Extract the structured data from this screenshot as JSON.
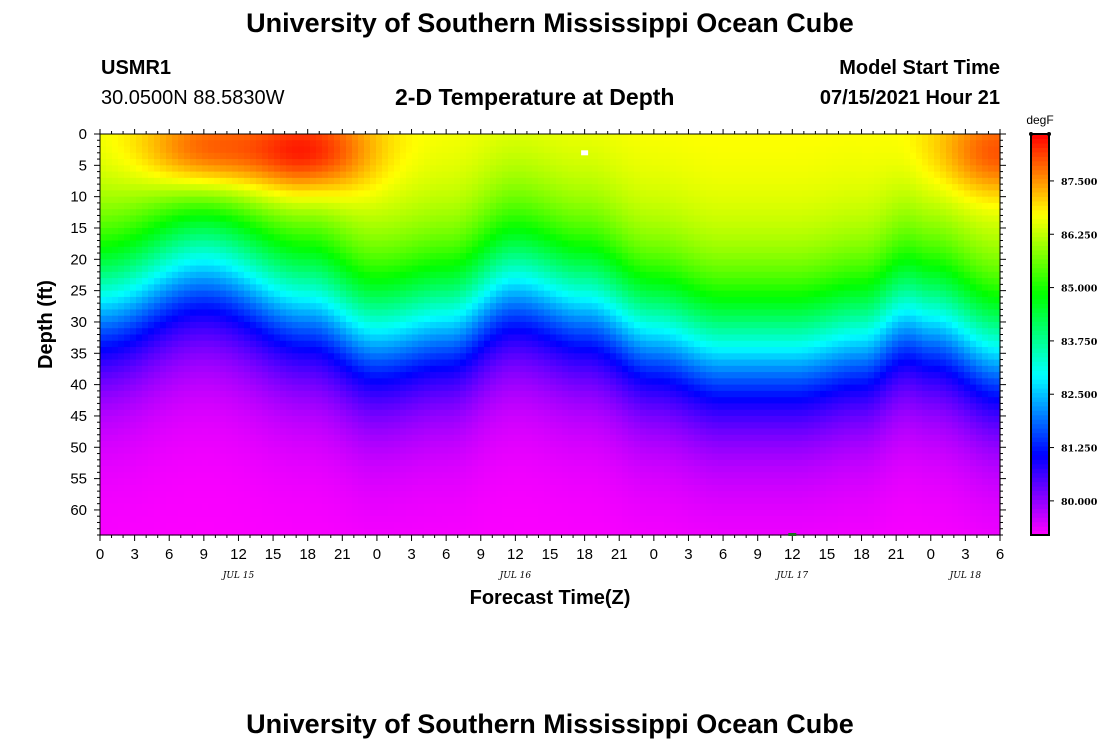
{
  "page": {
    "title_top": "University of Southern Mississippi Ocean Cube",
    "title_bottom": "University of Southern Mississippi Ocean Cube",
    "station": "USMR1",
    "coordinates": "30.0500N  88.5830W",
    "plot_title": "2-D Temperature at Depth",
    "model_start_label": "Model Start Time",
    "model_start_value": "07/15/2021 Hour 21"
  },
  "colors": {
    "background": "#ffffff",
    "axis": "#000000",
    "marker": "#ffffff"
  },
  "chart_data": {
    "type": "heatmap",
    "title": "2-D Temperature at Depth",
    "xlabel": "Forecast Time(Z)",
    "ylabel": "Depth (ft)",
    "x_hours_range": [
      0,
      78
    ],
    "y_range": [
      0,
      64
    ],
    "y_inverted": true,
    "x_tick_labels": [
      "0",
      "3",
      "6",
      "9",
      "12",
      "15",
      "18",
      "21",
      "0",
      "3",
      "6",
      "9",
      "12",
      "15",
      "18",
      "21",
      "0",
      "3",
      "6",
      "9",
      "12",
      "15",
      "18",
      "21",
      "0",
      "3",
      "6"
    ],
    "y_ticks": [
      0,
      5,
      10,
      15,
      20,
      25,
      30,
      35,
      40,
      45,
      50,
      55,
      60
    ],
    "date_labels": [
      {
        "label": "JUL 15",
        "hour": 12
      },
      {
        "label": "JUL 16",
        "hour": 36
      },
      {
        "label": "JUL 17",
        "hour": 60
      },
      {
        "label": "JUL 18",
        "hour": 75
      }
    ],
    "colorbar": {
      "unit": "degF",
      "min": 79.2,
      "max": 88.6,
      "tick_values": [
        80.0,
        81.25,
        82.5,
        83.75,
        85.0,
        86.25,
        87.5
      ],
      "tick_labels": [
        "80.000",
        "81.250",
        "82.500",
        "83.750",
        "85.000",
        "86.250",
        "87.500"
      ]
    },
    "thermocline_depth_by_hour": [
      {
        "hour": 0,
        "depth_ft": 26
      },
      {
        "hour": 9,
        "depth_ft": 20
      },
      {
        "hour": 18,
        "depth_ft": 26
      },
      {
        "hour": 24,
        "depth_ft": 31
      },
      {
        "hour": 30,
        "depth_ft": 29
      },
      {
        "hour": 36,
        "depth_ft": 23
      },
      {
        "hour": 42,
        "depth_ft": 26
      },
      {
        "hour": 48,
        "depth_ft": 31
      },
      {
        "hour": 54,
        "depth_ft": 34
      },
      {
        "hour": 60,
        "depth_ft": 34
      },
      {
        "hour": 66,
        "depth_ft": 32
      },
      {
        "hour": 70,
        "depth_ft": 28
      },
      {
        "hour": 72,
        "depth_ft": 29
      },
      {
        "hour": 78,
        "depth_ft": 34
      }
    ],
    "surface_hot_spots": [
      {
        "hour": 9,
        "depth_ft": 3,
        "temp_F": 88.4
      },
      {
        "hour": 18,
        "depth_ft": 3,
        "temp_F": 88.6
      },
      {
        "hour": 78,
        "depth_ft": 3,
        "temp_F": 88.1
      }
    ],
    "surface_temp_F": 86.8,
    "bottom_temp_F": 79.2,
    "max_marker": {
      "hour": 42,
      "depth_ft": 3
    },
    "min_marker": {
      "hour": 60,
      "depth_ft": 64
    }
  }
}
